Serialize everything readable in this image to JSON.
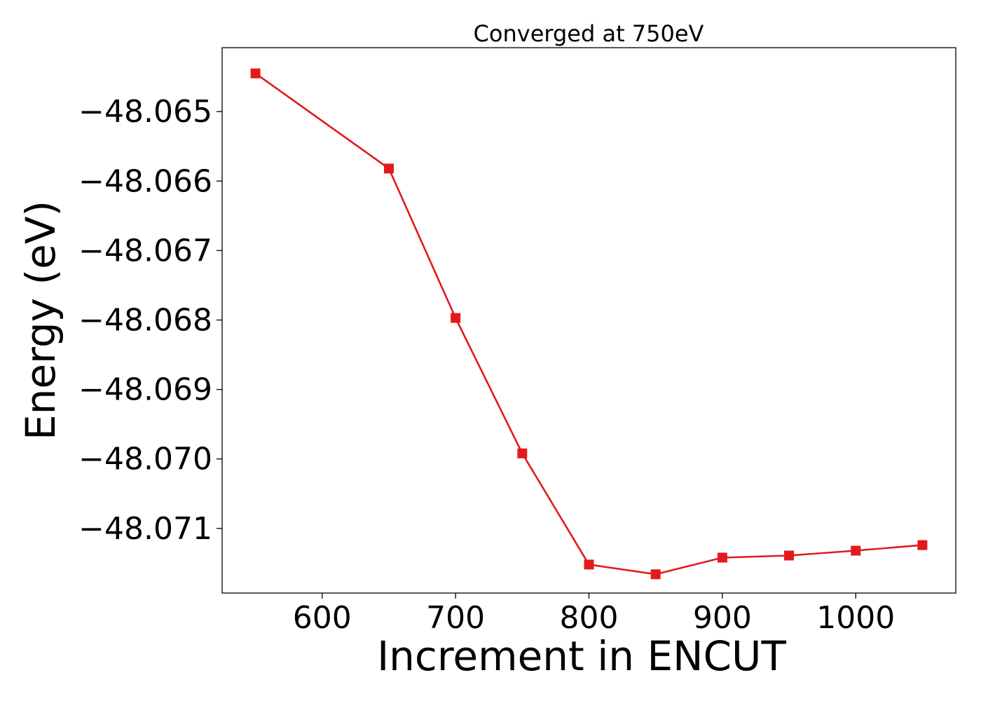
{
  "chart_data": {
    "type": "line",
    "title": "Converged at 750eV",
    "xlabel": "Increment in ENCUT",
    "ylabel": "Energy (eV)",
    "xlim": [
      525,
      1075
    ],
    "ylim": [
      -48.07193,
      -48.06408
    ],
    "xticks": [
      600,
      700,
      800,
      900,
      1000
    ],
    "xtick_labels": [
      "600",
      "700",
      "800",
      "900",
      "1000"
    ],
    "yticks": [
      -48.065,
      -48.066,
      -48.067,
      -48.068,
      -48.069,
      -48.07,
      -48.071
    ],
    "ytick_labels": [
      "−48.065",
      "−48.066",
      "−48.067",
      "−48.068",
      "−48.069",
      "−48.070",
      "−48.071"
    ],
    "grid": false,
    "series": [
      {
        "color": "#e31a1c",
        "marker": "square",
        "x": [
          550,
          650,
          700,
          750,
          800,
          850,
          900,
          950,
          1000,
          1050
        ],
        "y": [
          -48.06445,
          -48.06582,
          -48.06797,
          -48.06992,
          -48.07152,
          -48.07166,
          -48.07142,
          -48.07139,
          -48.07132,
          -48.07124
        ]
      }
    ]
  }
}
